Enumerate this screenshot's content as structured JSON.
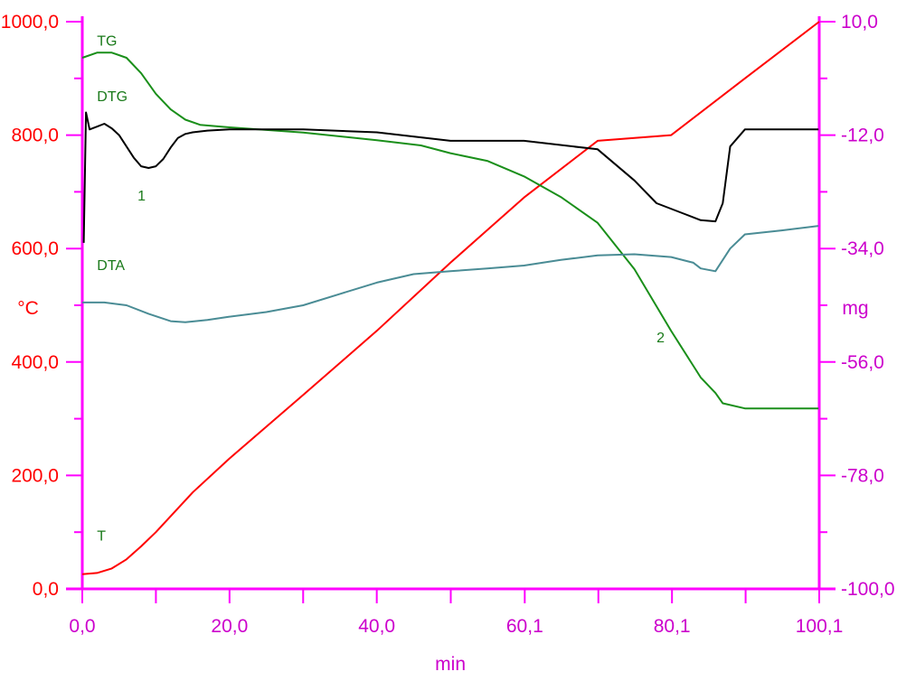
{
  "chart_data": {
    "type": "line",
    "x_axis": {
      "label": "min",
      "range": [
        0,
        100.1
      ],
      "ticks": [
        0,
        20,
        40,
        60.1,
        80.1,
        100.1
      ],
      "tick_labels": [
        "0,0",
        "20,0",
        "40,0",
        "60,1",
        "80,1",
        "100,1"
      ]
    },
    "y_axis_left": {
      "label": "°C",
      "range": [
        0,
        1000
      ],
      "ticks": [
        0,
        200,
        400,
        600,
        800,
        1000
      ],
      "tick_labels": [
        "0,0",
        "200,0",
        "400,0",
        "600,0",
        "800,0",
        "1000,0"
      ]
    },
    "y_axis_right": {
      "label": "mg",
      "range": [
        -100,
        10
      ],
      "ticks": [
        -100,
        -78,
        -56,
        -34,
        -12,
        10
      ],
      "tick_labels": [
        "-100,0",
        "-78,0",
        "-56,0",
        "-34,0",
        "-12,0",
        "10,0"
      ]
    },
    "grid": false,
    "colors": {
      "axes": "#ff00ff",
      "left_ticks": "#ff0000",
      "right_ticks": "#cc00cc",
      "bottom_ticks": "#cc00cc",
      "T": "#ff0000",
      "TG": "#1a8f1a",
      "DTG": "#000000",
      "DTA": "#4a8c95",
      "annotation": "#1a7a1a"
    },
    "series": [
      {
        "name": "T",
        "color": "#ff0000",
        "x": [
          0,
          2,
          4,
          6,
          8,
          10,
          15,
          20,
          30,
          40,
          50,
          60,
          70,
          80,
          90,
          100.1
        ],
        "y": [
          26,
          28,
          36,
          52,
          75,
          100,
          170,
          230,
          342,
          455,
          575,
          690,
          790,
          800,
          900,
          1000
        ]
      },
      {
        "name": "TG",
        "color": "#1a8f1a",
        "x": [
          0,
          2,
          4,
          6,
          8,
          10,
          12,
          14,
          16,
          20,
          30,
          40,
          46,
          50,
          55,
          60,
          65,
          70,
          75,
          80,
          84,
          86,
          87,
          90,
          95,
          100
        ],
        "y": [
          3,
          4,
          4,
          3,
          0,
          -4,
          -7,
          -9,
          -10,
          -10.5,
          -11.5,
          -13,
          -14,
          -15.5,
          -17,
          -20,
          -24,
          -29,
          -38,
          -50,
          -59,
          -62,
          -64,
          -65,
          -65,
          -65
        ]
      },
      {
        "name": "DTG",
        "color": "#000000",
        "x": [
          0.2,
          0.5,
          1,
          2,
          3,
          4,
          5,
          6,
          7,
          8,
          9,
          10,
          11,
          12,
          13,
          14,
          15,
          17,
          20,
          30,
          40,
          50,
          60,
          70,
          75,
          78,
          82,
          84,
          86,
          87,
          88,
          90,
          95,
          100
        ],
        "y": [
          610,
          840,
          810,
          815,
          820,
          812,
          800,
          780,
          760,
          745,
          742,
          745,
          758,
          778,
          795,
          802,
          805,
          808,
          810,
          810,
          805,
          790,
          790,
          775,
          720,
          680,
          660,
          650,
          648,
          680,
          780,
          810,
          810,
          810
        ]
      },
      {
        "name": "DTA",
        "color": "#4a8c95",
        "x": [
          0,
          3,
          6,
          9,
          12,
          14,
          17,
          20,
          25,
          30,
          35,
          40,
          45,
          50,
          55,
          60,
          65,
          70,
          75,
          80,
          83,
          84,
          86,
          88,
          90,
          95,
          100
        ],
        "y": [
          505,
          505,
          500,
          485,
          472,
          470,
          474,
          480,
          488,
          500,
          520,
          540,
          555,
          560,
          565,
          570,
          580,
          588,
          590,
          585,
          575,
          565,
          560,
          600,
          625,
          632,
          640
        ]
      }
    ],
    "annotations": [
      {
        "text": "TG",
        "x": 2,
        "y": 958
      },
      {
        "text": "DTG",
        "x": 2,
        "y": 860
      },
      {
        "text": "1",
        "x": 7.5,
        "y": 685
      },
      {
        "text": "DTA",
        "x": 2,
        "y": 562
      },
      {
        "text": "2",
        "x": 78,
        "y": 435
      },
      {
        "text": "T",
        "x": 2,
        "y": 85
      }
    ]
  }
}
